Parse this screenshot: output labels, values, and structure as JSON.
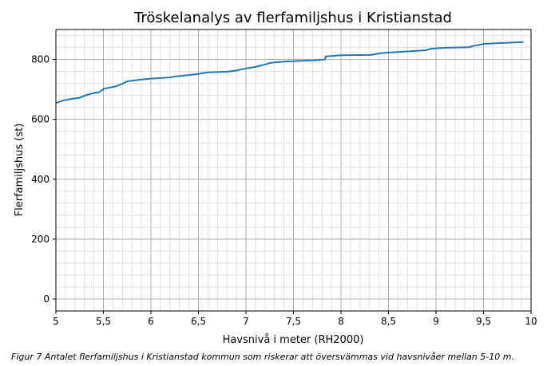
{
  "chart_data": {
    "type": "line",
    "title": "Tröskelanalys av flerfamiljshus i Kristianstad",
    "xlabel": "Havsnivå i meter (RH2000)",
    "ylabel": "Flerfamiljshus (st)",
    "xlim": [
      5,
      10
    ],
    "ylim": [
      -40,
      900
    ],
    "xticks": [
      5,
      5.5,
      6,
      6.5,
      7,
      7.5,
      8,
      8.5,
      9,
      9.5,
      10
    ],
    "xtick_labels": [
      "5",
      "5,5",
      "6",
      "6,5",
      "7",
      "7,5",
      "8",
      "8,5",
      "9",
      "9,5",
      "10"
    ],
    "yticks": [
      0,
      200,
      400,
      600,
      800
    ],
    "ytick_labels": [
      "0",
      "200",
      "400",
      "600",
      "800"
    ],
    "grid": true,
    "color": "#1f77b4",
    "series": [
      {
        "name": "Flerfamiljshus",
        "x": [
          5.0,
          5.05,
          5.1,
          5.2,
          5.25,
          5.3,
          5.4,
          5.45,
          5.5,
          5.55,
          5.6,
          5.65,
          5.7,
          5.75,
          5.9,
          6.0,
          6.2,
          6.25,
          6.4,
          6.5,
          6.6,
          6.8,
          6.85,
          6.9,
          7.0,
          7.1,
          7.2,
          7.25,
          7.3,
          7.4,
          7.5,
          7.6,
          7.7,
          7.83,
          7.84,
          8.0,
          8.3,
          8.35,
          8.4,
          8.5,
          8.6,
          8.8,
          8.9,
          8.95,
          9.1,
          9.35,
          9.4,
          9.45,
          9.5,
          9.7,
          9.92
        ],
        "y": [
          654,
          660,
          665,
          670,
          672,
          679,
          688,
          690,
          701,
          705,
          708,
          712,
          719,
          727,
          733,
          736,
          740,
          743,
          748,
          752,
          757,
          759,
          761,
          763,
          770,
          775,
          783,
          788,
          790,
          793,
          794,
          796,
          797,
          800,
          810,
          814,
          815,
          817,
          820,
          823,
          825,
          829,
          831,
          836,
          839,
          841,
          846,
          848,
          852,
          855,
          858
        ]
      }
    ]
  },
  "caption": "Figur 7 Antalet flerfamiljshus i Kristianstad kommun som riskerar att översvämmas vid havsnivåer mellan 5-10 m."
}
